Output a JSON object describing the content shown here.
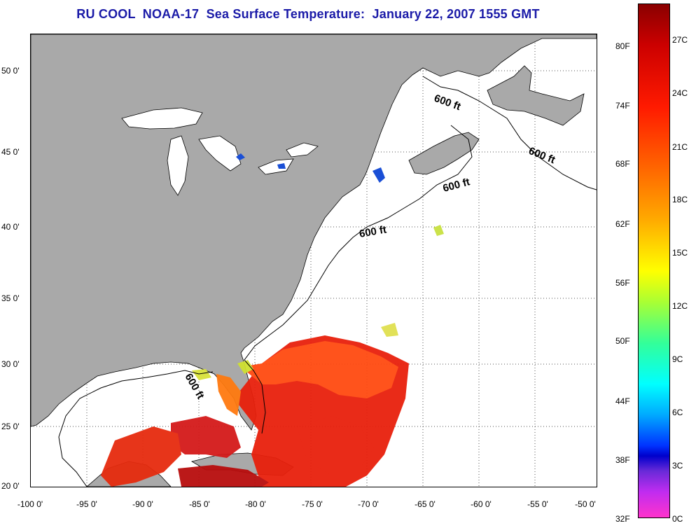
{
  "title": "RU COOL  NOAA-17  Sea Surface Temperature:  January 22, 2007 1555 GMT",
  "x_ticks": [
    "-100 0'",
    "-95 0'",
    "-90 0'",
    "-85 0'",
    "-80 0'",
    "-75 0'",
    "-70 0'",
    "-65 0'",
    "-60 0'",
    "-55 0'",
    "-50 0'"
  ],
  "y_ticks": [
    "50 0'",
    "45 0'",
    "40 0'",
    "35 0'",
    "30 0'",
    "25 0'",
    "20 0'"
  ],
  "contour_label": "600 ft",
  "colorbar": {
    "fahrenheit": [
      "80F",
      "74F",
      "68F",
      "62F",
      "56F",
      "50F",
      "44F",
      "38F",
      "32F"
    ],
    "celsius": [
      "27C",
      "24C",
      "21C",
      "18C",
      "15C",
      "12C",
      "9C",
      "6C",
      "3C",
      "0C"
    ]
  },
  "colors": {
    "land": "#a9a9a9",
    "title": "#1b1ba8",
    "no_data": "#ffffff"
  }
}
